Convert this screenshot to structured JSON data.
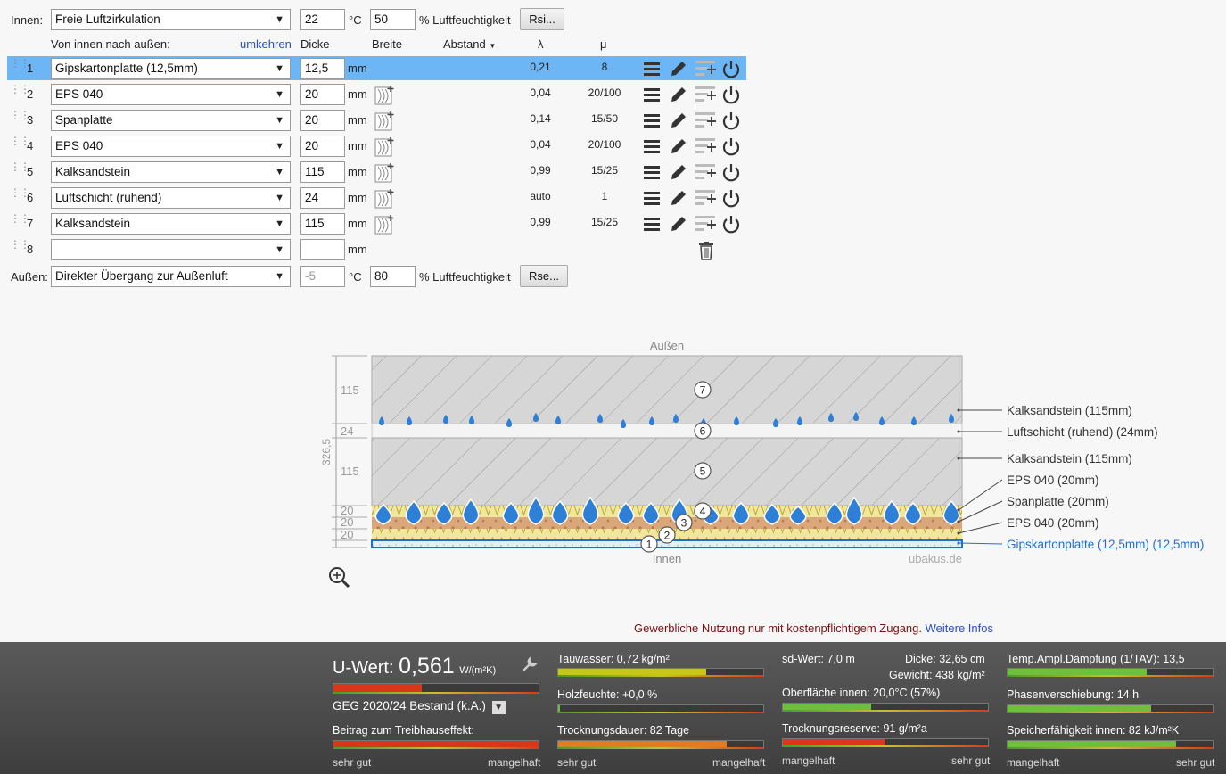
{
  "inside": {
    "label": "Innen:",
    "climate": "Freie Luftzirkulation",
    "temp": "22",
    "temp_unit": "°C",
    "humidity": "50",
    "humidity_label": "% Luftfeuchtigkeit",
    "rsi_button": "Rsi..."
  },
  "columns": {
    "direction": "Von innen nach außen:",
    "reverse": "umkehren",
    "thickness": "Dicke",
    "width": "Breite",
    "spacing": "Abstand",
    "lambda": "λ",
    "mu": "μ"
  },
  "layers": [
    {
      "num": "1",
      "material": "Gipskartonplatte (12,5mm)",
      "thickness": "12,5",
      "unit": "mm",
      "lambda": "0,21",
      "mu": "8"
    },
    {
      "num": "2",
      "material": "EPS 040",
      "thickness": "20",
      "unit": "mm",
      "lambda": "0,04",
      "mu": "20/100"
    },
    {
      "num": "3",
      "material": "Spanplatte",
      "thickness": "20",
      "unit": "mm",
      "lambda": "0,14",
      "mu": "15/50"
    },
    {
      "num": "4",
      "material": "EPS 040",
      "thickness": "20",
      "unit": "mm",
      "lambda": "0,04",
      "mu": "20/100"
    },
    {
      "num": "5",
      "material": "Kalksandstein",
      "thickness": "115",
      "unit": "mm",
      "lambda": "0,99",
      "mu": "15/25"
    },
    {
      "num": "6",
      "material": "Luftschicht (ruhend)",
      "thickness": "24",
      "unit": "mm",
      "lambda": "auto",
      "mu": "1"
    },
    {
      "num": "7",
      "material": "Kalksandstein",
      "thickness": "115",
      "unit": "mm",
      "lambda": "0,99",
      "mu": "15/25"
    },
    {
      "num": "8",
      "material": "",
      "thickness": "",
      "unit": "mm",
      "lambda": "",
      "mu": ""
    }
  ],
  "outside": {
    "label": "Außen:",
    "climate": "Direkter Übergang zur Außenluft",
    "temp": "-5",
    "temp_unit": "°C",
    "humidity": "80",
    "humidity_label": "% Luftfeuchtigkeit",
    "rse_button": "Rse..."
  },
  "diagram": {
    "top_label": "Außen",
    "bottom_label": "Innen",
    "watermark": "ubakus.de",
    "total": "326,5",
    "dims": [
      "115",
      "24",
      "115",
      "20",
      "20",
      "20"
    ],
    "markers": [
      "7",
      "6",
      "5",
      "4",
      "3",
      "2",
      "1"
    ],
    "legend": [
      "Kalksandstein (115mm)",
      "Luftschicht (ruhend) (24mm)",
      "Kalksandstein (115mm)",
      "EPS 040 (20mm)",
      "Spanplatte (20mm)",
      "EPS 040 (20mm)",
      "Gipskartonplatte (12,5mm) (12,5mm)"
    ]
  },
  "notice": {
    "text": "Gewerbliche Nutzung nur mit kostenpflichtigem Zugang.",
    "link": "Weitere Infos"
  },
  "results": {
    "u_label": "U-Wert:",
    "u_value": "0,561",
    "u_unit": "W/(m²K)",
    "u_fill": 0.43,
    "standard": "GEG 2020/24 Bestand (k.A.)",
    "greenhouse": "Beitrag zum Treibhauseffekt:",
    "greenhouse_fill": 1.0,
    "tauwasser": "Tauwasser: 0,72 kg/m²",
    "tauwasser_fill": 0.72,
    "holzfeuchte": "Holzfeuchte: +0,0 %",
    "holzfeuchte_fill": 0.01,
    "trocknungsdauer": "Trocknungsdauer: 82 Tage",
    "trocknungsdauer_fill": 0.82,
    "sd": "sd-Wert: 7,0 m",
    "dicke": "Dicke: 32,65 cm",
    "gewicht": "Gewicht: 438 kg/m²",
    "oberflaeche": "Oberfläche innen: 20,0°C (57%)",
    "oberflaeche_fill": 0.43,
    "trocknungsreserve": "Trocknungsreserve: 91 g/m²a",
    "trocknungsreserve_fill": 0.5,
    "temp_ampl": "Temp.Ampl.Dämpfung (1/TAV): 13,5",
    "temp_ampl_fill": 0.68,
    "phasen": "Phasenverschiebung: 14 h",
    "phasen_fill": 0.7,
    "speicher": "Speicherfähigkeit innen: 82 kJ/m²K",
    "speicher_fill": 0.82,
    "scale_good": "sehr gut",
    "scale_bad": "mangelhaft"
  },
  "colors": {
    "active_row": "#6cb6f5",
    "link": "#2b4fc7",
    "bar_red": "#d9361a",
    "bar_yellow": "#c8c51e",
    "bar_orange": "#e37b22",
    "bar_green": "#6fbf3a"
  }
}
